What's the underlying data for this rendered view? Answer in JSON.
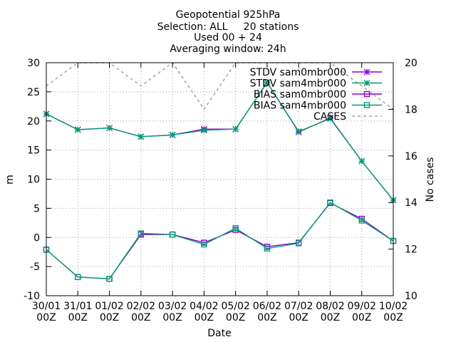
{
  "chart_data": {
    "type": "line",
    "title_lines": [
      "Geopotential 925hPa",
      "Selection: ALL     20 stations",
      "Used 00 + 24",
      "Averaging window: 24h"
    ],
    "xlabel": "Date",
    "ylabel": "m",
    "y2label": "No cases",
    "categories": [
      [
        "30/01",
        "00Z"
      ],
      [
        "31/01",
        "00Z"
      ],
      [
        "01/02",
        "00Z"
      ],
      [
        "02/02",
        "00Z"
      ],
      [
        "03/02",
        "00Z"
      ],
      [
        "04/02",
        "00Z"
      ],
      [
        "05/02",
        "00Z"
      ],
      [
        "06/02",
        "00Z"
      ],
      [
        "07/02",
        "00Z"
      ],
      [
        "08/02",
        "00Z"
      ],
      [
        "09/02",
        "00Z"
      ],
      [
        "10/02",
        "00Z"
      ]
    ],
    "ylim": [
      -10,
      30
    ],
    "yticks": [
      -10,
      -5,
      0,
      5,
      10,
      15,
      20,
      25,
      30
    ],
    "y2lim": [
      10,
      20
    ],
    "y2ticks": [
      10,
      12,
      14,
      16,
      18,
      20
    ],
    "grid": true,
    "legend_position": "top-right",
    "series": [
      {
        "name": "STDV sam0mbr000",
        "axis": "y1",
        "color": "#9400d3",
        "marker": "star",
        "values": [
          21.2,
          18.5,
          18.8,
          17.3,
          17.6,
          18.6,
          18.6,
          26.6,
          18.1,
          20.5,
          13.1,
          6.4
        ]
      },
      {
        "name": "STDV sam4mbr000",
        "axis": "y1",
        "color": "#009e73",
        "marker": "star",
        "values": [
          21.2,
          18.5,
          18.8,
          17.3,
          17.6,
          18.4,
          18.6,
          26.6,
          18.2,
          20.4,
          13.1,
          6.4
        ]
      },
      {
        "name": "BIAS sam0mbr000",
        "axis": "y1",
        "color": "#9400d3",
        "marker": "square",
        "values": [
          -2.1,
          -6.8,
          -7.1,
          0.5,
          0.5,
          -0.9,
          1.3,
          -1.6,
          -0.9,
          5.9,
          3.2,
          -0.6
        ]
      },
      {
        "name": "BIAS sam4mbr000",
        "axis": "y1",
        "color": "#009e73",
        "marker": "square",
        "values": [
          -2.1,
          -6.8,
          -7.1,
          0.7,
          0.5,
          -1.2,
          1.6,
          -1.9,
          -1.0,
          6.0,
          2.9,
          -0.6
        ]
      },
      {
        "name": "CASES",
        "axis": "y2",
        "color": "#a0a0a0",
        "marker": "none",
        "dashed": true,
        "values": [
          19,
          20,
          20,
          19,
          20,
          18,
          20,
          20,
          20,
          20,
          19,
          18
        ]
      }
    ]
  }
}
